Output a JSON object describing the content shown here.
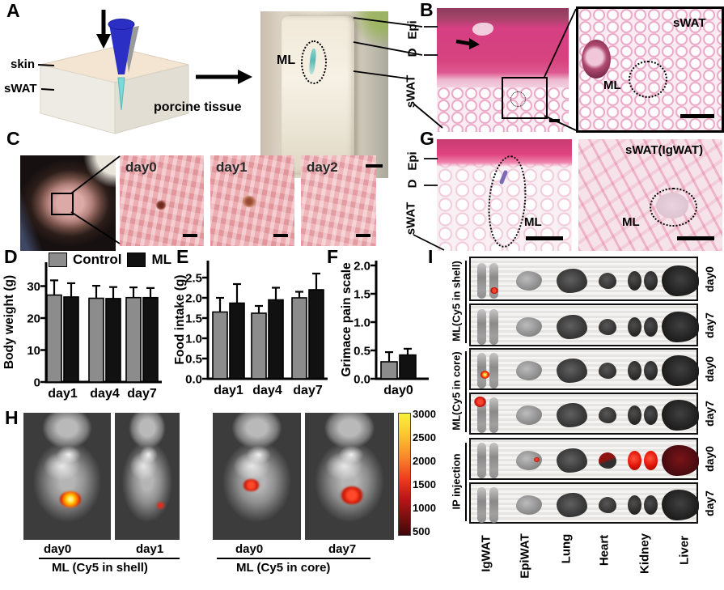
{
  "panels": {
    "a": {
      "label": "A"
    },
    "b": {
      "label": "B"
    },
    "c": {
      "label": "C"
    },
    "d": {
      "label": "D"
    },
    "e": {
      "label": "E"
    },
    "f": {
      "label": "F"
    },
    "g": {
      "label": "G"
    },
    "h": {
      "label": "H"
    },
    "i": {
      "label": "I"
    }
  },
  "panel_a": {
    "skin": "skin",
    "swat": "sWAT",
    "tissue": "porcine tissue",
    "ml": "ML"
  },
  "panel_b": {
    "epi": "Epi",
    "d": "D",
    "swat": "sWAT",
    "inset_swat": "sWAT",
    "inset_ml": "ML"
  },
  "panel_c": {
    "days": [
      "day0",
      "day1",
      "day2"
    ]
  },
  "panel_g": {
    "epi": "Epi",
    "d": "D",
    "swat": "sWAT",
    "ml": "ML",
    "right_title": "sWAT(IgWAT)",
    "right_ml": "ML"
  },
  "panel_h": {
    "groups": [
      {
        "label": "ML (Cy5 in shell)",
        "days": [
          "day0",
          "day1"
        ]
      },
      {
        "label": "ML (Cy5 in core)",
        "days": [
          "day0",
          "day7"
        ]
      }
    ],
    "colorbar_ticks": [
      "3000",
      "2500",
      "2000",
      "1500",
      "1000",
      "500"
    ]
  },
  "panel_i": {
    "groups": [
      "ML(Cy5 in shell)",
      "ML(Cy5 in core)",
      "IP injection"
    ],
    "organs": [
      "IgWAT",
      "EpiWAT",
      "Lung",
      "Heart",
      "Kidney",
      "Liver"
    ],
    "rows": [
      {
        "day": "day0",
        "group": "ML(Cy5 in shell)",
        "marks": [
          "igwat-red"
        ]
      },
      {
        "day": "day7",
        "group": "ML(Cy5 in shell)",
        "marks": []
      },
      {
        "day": "day0",
        "group": "ML(Cy5 in core)",
        "marks": [
          "igwat-red-core"
        ]
      },
      {
        "day": "day7",
        "group": "ML(Cy5 in core)",
        "marks": [
          "igwat-red-top"
        ]
      },
      {
        "day": "day0",
        "group": "IP injection",
        "marks": [
          "epiwat-red",
          "heart-red",
          "kidney-red",
          "liver-red"
        ]
      },
      {
        "day": "day7",
        "group": "IP injection",
        "marks": []
      }
    ]
  },
  "chart_data": [
    {
      "id": "body-weight",
      "panel": "D",
      "type": "bar",
      "ylabel": "Body weight (g)",
      "categories": [
        "day1",
        "day4",
        "day7"
      ],
      "series": [
        {
          "name": "Control",
          "color": "#8c8c8c",
          "values": [
            27.2,
            26.2,
            26.4
          ],
          "errors": [
            4.6,
            3.9,
            3.2
          ]
        },
        {
          "name": "ML",
          "color": "#111111",
          "values": [
            26.6,
            26.1,
            26.4
          ],
          "errors": [
            4.3,
            3.6,
            3.0
          ]
        }
      ],
      "yticks": [
        "0",
        "10",
        "20",
        "30"
      ],
      "ylim": [
        0,
        36
      ],
      "grid": false,
      "legend_position": "top"
    },
    {
      "id": "food-intake",
      "panel": "E",
      "type": "bar",
      "ylabel": "Food intake (g)",
      "categories": [
        "day1",
        "day4",
        "day7"
      ],
      "series": [
        {
          "name": "Control",
          "color": "#8c8c8c",
          "values": [
            1.65,
            1.62,
            2.0
          ],
          "errors": [
            0.35,
            0.18,
            0.15
          ]
        },
        {
          "name": "ML",
          "color": "#111111",
          "values": [
            1.87,
            1.95,
            2.2
          ],
          "errors": [
            0.47,
            0.3,
            0.4
          ]
        }
      ],
      "yticks": [
        "0.0",
        "0.5",
        "1.0",
        "1.5",
        "2.0",
        "2.5"
      ],
      "ylim": [
        0,
        2.9
      ],
      "grid": false
    },
    {
      "id": "grimace",
      "panel": "F",
      "type": "bar",
      "ylabel": "Grimace pain scale",
      "categories": [
        "day0"
      ],
      "series": [
        {
          "name": "Control",
          "color": "#8c8c8c",
          "values": [
            0.3
          ],
          "errors": [
            0.17
          ]
        },
        {
          "name": "ML",
          "color": "#111111",
          "values": [
            0.42
          ],
          "errors": [
            0.11
          ]
        }
      ],
      "yticks": [
        "0.0",
        "0.5",
        "1.0",
        "1.5",
        "2.0"
      ],
      "ylim": [
        0,
        2.1
      ],
      "grid": false
    }
  ]
}
